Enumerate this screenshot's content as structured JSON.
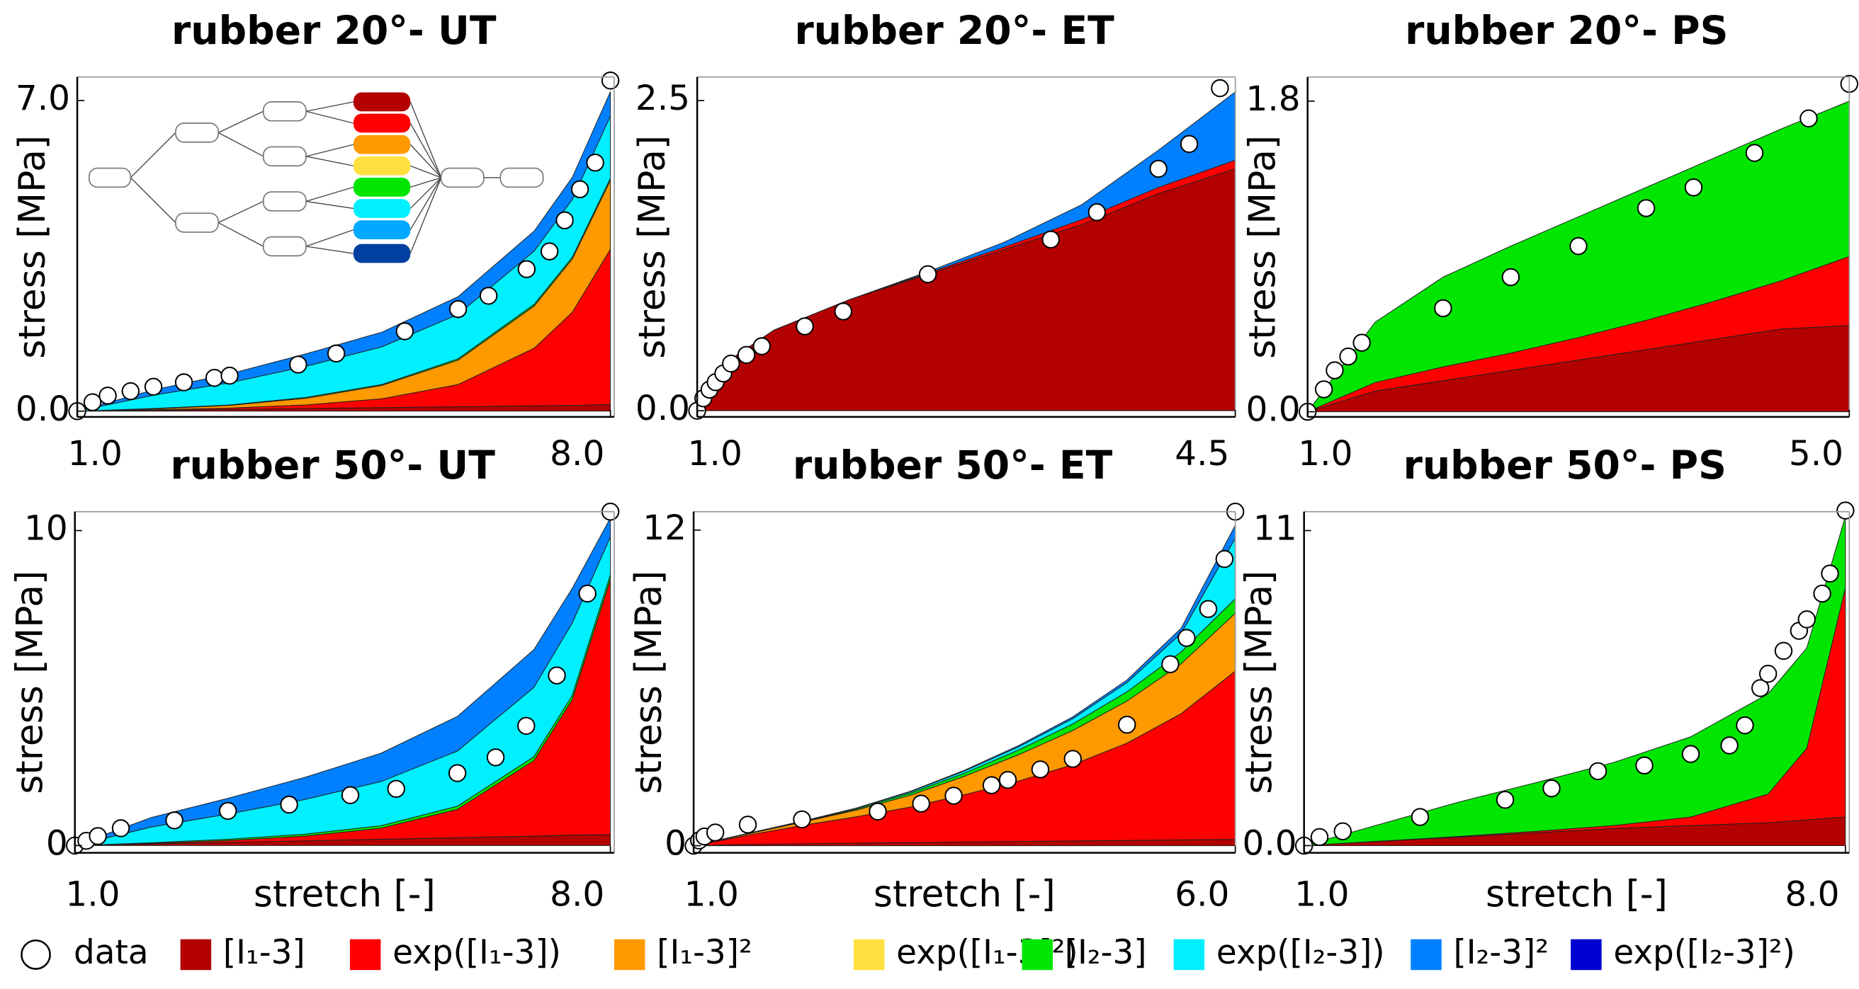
{
  "chart_data": [
    {
      "type": "area",
      "title": "rubber 20°- UT",
      "ylabel": "stress [MPa]",
      "x": [
        1,
        2,
        3,
        4,
        5,
        6,
        7,
        7.5,
        8
      ],
      "series": [
        {
          "color": "#b30000",
          "values": [
            0,
            0.02,
            0.04,
            0.06,
            0.08,
            0.1,
            0.12,
            0.13,
            0.15
          ]
        },
        {
          "color": "#ff0000",
          "values": [
            0,
            0.01,
            0.03,
            0.08,
            0.2,
            0.5,
            1.3,
            2.1,
            3.5
          ]
        },
        {
          "color": "#ff9900",
          "values": [
            0,
            0.02,
            0.06,
            0.15,
            0.3,
            0.55,
            0.95,
            1.2,
            1.55
          ]
        },
        {
          "color": "#00e600",
          "values": [
            0,
            0.01,
            0.01,
            0.02,
            0.02,
            0.03,
            0.04,
            0.04,
            0.05
          ]
        },
        {
          "color": "#00f0ff",
          "values": [
            0,
            0.3,
            0.5,
            0.7,
            0.85,
            1.0,
            1.2,
            1.3,
            1.4
          ]
        },
        {
          "color": "#0080ff",
          "values": [
            0,
            0.12,
            0.2,
            0.28,
            0.33,
            0.4,
            0.45,
            0.5,
            0.55
          ]
        }
      ],
      "points": {
        "x": [
          1,
          1.2,
          1.4,
          1.7,
          2,
          2.4,
          2.8,
          3.0,
          3.9,
          4.4,
          5.3,
          6,
          6.4,
          6.9,
          7.2,
          7.4,
          7.6,
          7.8,
          8
        ],
        "y": [
          0,
          0.2,
          0.35,
          0.45,
          0.55,
          0.65,
          0.75,
          0.8,
          1.05,
          1.3,
          1.8,
          2.3,
          2.6,
          3.2,
          3.6,
          4.3,
          5,
          5.6,
          7.45
        ]
      },
      "xlim": [
        1,
        8.05
      ],
      "ylim": [
        -0.13,
        7.53
      ],
      "xticks": [
        {
          "value": 1,
          "label": "1.0"
        },
        {
          "value": 8,
          "label": "8.0"
        }
      ],
      "yticks": [
        {
          "value": 0,
          "label": "0.0"
        },
        {
          "value": 7,
          "label": "7.0"
        }
      ]
    },
    {
      "type": "area",
      "title": "rubber 20°- ET",
      "ylabel": "stress [MPa]",
      "x": [
        1,
        1.2,
        1.5,
        2,
        2.5,
        3,
        3.5,
        4,
        4.5
      ],
      "series": [
        {
          "color": "#b30000",
          "values": [
            0,
            0.4,
            0.65,
            0.9,
            1.1,
            1.3,
            1.5,
            1.75,
            1.95
          ]
        },
        {
          "color": "#ff0000",
          "values": [
            0,
            0,
            0,
            0,
            0.01,
            0.02,
            0.04,
            0.05,
            0.07
          ]
        },
        {
          "color": "#0080ff",
          "values": [
            0,
            0,
            0,
            0,
            0.01,
            0.04,
            0.12,
            0.3,
            0.55
          ]
        }
      ],
      "points": {
        "x": [
          1,
          1.04,
          1.08,
          1.12,
          1.17,
          1.22,
          1.32,
          1.42,
          1.7,
          1.95,
          2.5,
          3.3,
          3.6,
          4.0,
          4.2,
          4.4
        ],
        "y": [
          0,
          0.1,
          0.17,
          0.23,
          0.3,
          0.38,
          0.45,
          0.52,
          0.68,
          0.8,
          1.1,
          1.38,
          1.6,
          1.95,
          2.15,
          2.6
        ]
      },
      "xlim": [
        1,
        4.5
      ],
      "ylim": [
        -0.05,
        2.69
      ],
      "xticks": [
        {
          "value": 1,
          "label": "1.0"
        },
        4.5
      ],
      "yticks": [
        {
          "value": 0,
          "label": "0.0"
        },
        2.5
      ]
    },
    {
      "type": "area",
      "title": "rubber 20°- PS",
      "ylabel": "stress [MPa]",
      "x": [
        1,
        1.5,
        2,
        2.5,
        3,
        3.5,
        4,
        4.5,
        5
      ],
      "series": [
        {
          "color": "#b30000",
          "values": [
            0,
            0.12,
            0.18,
            0.24,
            0.3,
            0.36,
            0.42,
            0.48,
            0.5
          ]
        },
        {
          "color": "#ff0000",
          "values": [
            0,
            0.05,
            0.08,
            0.1,
            0.13,
            0.17,
            0.22,
            0.28,
            0.4
          ]
        },
        {
          "color": "#00e600",
          "values": [
            0,
            0.35,
            0.52,
            0.62,
            0.7,
            0.77,
            0.83,
            0.88,
            0.9
          ]
        }
      ],
      "points": {
        "x": [
          1,
          1.12,
          1.2,
          1.3,
          1.4,
          2.0,
          2.5,
          3.0,
          3.5,
          3.85,
          4.3,
          4.7,
          5
        ],
        "y": [
          0,
          0.13,
          0.24,
          0.32,
          0.4,
          0.6,
          0.78,
          0.96,
          1.18,
          1.3,
          1.5,
          1.7,
          1.9
        ]
      },
      "xlim": [
        1,
        5
      ],
      "ylim": [
        -0.03,
        1.94
      ],
      "xticks": [
        {
          "value": 1,
          "label": "1.0"
        },
        {
          "value": 5,
          "label": "5.0"
        }
      ],
      "yticks": [
        {
          "value": 0,
          "label": "0.0"
        },
        1.8
      ]
    },
    {
      "type": "area",
      "title": "rubber 50°- UT",
      "ylabel": "stress [MPa]",
      "xlabel": "stretch [-]",
      "x": [
        1,
        2,
        3,
        4,
        5,
        6,
        7,
        7.5,
        8
      ],
      "series": [
        {
          "color": "#b30000",
          "values": [
            0,
            0.05,
            0.1,
            0.15,
            0.2,
            0.25,
            0.3,
            0.33,
            0.35
          ]
        },
        {
          "color": "#ff0000",
          "values": [
            0,
            0.02,
            0.06,
            0.15,
            0.35,
            0.9,
            2.4,
            4.3,
            8.1
          ]
        },
        {
          "color": "#00e600",
          "values": [
            0,
            0.02,
            0.04,
            0.06,
            0.08,
            0.1,
            0.12,
            0.13,
            0.15
          ]
        },
        {
          "color": "#00f0ff",
          "values": [
            0,
            0.5,
            0.8,
            1.1,
            1.4,
            1.75,
            2.2,
            2.3,
            1.2
          ]
        },
        {
          "color": "#0080ff",
          "values": [
            0,
            0.3,
            0.5,
            0.7,
            0.9,
            1.1,
            1.2,
            1.1,
            0.6
          ]
        }
      ],
      "points": {
        "x": [
          1,
          1.15,
          1.3,
          1.6,
          2.3,
          3,
          3.8,
          4.6,
          5.2,
          6,
          6.5,
          6.9,
          7.3,
          7.7,
          8
        ],
        "y": [
          0,
          0.15,
          0.3,
          0.55,
          0.8,
          1.1,
          1.3,
          1.6,
          1.8,
          2.3,
          2.8,
          3.8,
          5.4,
          8,
          10.6
        ]
      },
      "xlim": [
        1,
        8.05
      ],
      "ylim": [
        -0.23,
        10.6
      ],
      "xticks": [
        {
          "value": 1,
          "label": "1.0"
        },
        {
          "value": 8,
          "label": "8.0"
        }
      ],
      "yticks": [
        0,
        10
      ]
    },
    {
      "type": "area",
      "title": "rubber 50°- ET",
      "ylabel": "stress [MPa]",
      "xlabel": "stretch [-]",
      "x": [
        1,
        1.5,
        2,
        2.5,
        3,
        3.5,
        4,
        4.5,
        5,
        5.5,
        6
      ],
      "series": [
        {
          "color": "#b30000",
          "values": [
            0,
            0.05,
            0.07,
            0.1,
            0.12,
            0.14,
            0.16,
            0.18,
            0.2,
            0.22,
            0.24
          ]
        },
        {
          "color": "#ff0000",
          "values": [
            0,
            0.35,
            0.7,
            1.0,
            1.35,
            1.8,
            2.3,
            2.9,
            3.7,
            4.8,
            6.4
          ]
        },
        {
          "color": "#ff9900",
          "values": [
            0,
            0.05,
            0.12,
            0.25,
            0.45,
            0.7,
            1.0,
            1.3,
            1.6,
            1.9,
            2.2
          ]
        },
        {
          "color": "#00e600",
          "values": [
            0,
            0.01,
            0.02,
            0.04,
            0.08,
            0.12,
            0.18,
            0.25,
            0.35,
            0.45,
            0.55
          ]
        },
        {
          "color": "#00f0ff",
          "values": [
            0,
            0.01,
            0.02,
            0.03,
            0.05,
            0.08,
            0.12,
            0.2,
            0.35,
            0.7,
            2.3
          ]
        },
        {
          "color": "#0080ff",
          "values": [
            0,
            0,
            0,
            0.01,
            0.02,
            0.03,
            0.05,
            0.07,
            0.1,
            0.2,
            0.5
          ]
        }
      ],
      "points": {
        "x": [
          1,
          1.05,
          1.1,
          1.2,
          1.5,
          2.0,
          2.7,
          3.1,
          3.4,
          3.75,
          3.9,
          4.2,
          4.5,
          5.0,
          5.4,
          5.55,
          5.75,
          5.9,
          6.0
        ],
        "y": [
          0,
          0.2,
          0.35,
          0.5,
          0.8,
          1.0,
          1.3,
          1.6,
          1.9,
          2.3,
          2.5,
          2.9,
          3.3,
          4.6,
          6.9,
          7.9,
          9.0,
          10.9,
          12.7
        ]
      },
      "xlim": [
        1,
        6
      ],
      "ylim": [
        -0.27,
        12.7
      ],
      "xticks": [
        {
          "value": 1,
          "label": "1.0"
        },
        {
          "value": 6,
          "label": "6.0"
        }
      ],
      "yticks": [
        0,
        12
      ]
    },
    {
      "type": "area",
      "title": "rubber 50°- PS",
      "ylabel": "stress [MPa]",
      "xlabel": "stretch [-]",
      "x": [
        1,
        2,
        3,
        4,
        5,
        6,
        7,
        7.5,
        8
      ],
      "series": [
        {
          "color": "#b30000",
          "values": [
            0,
            0.15,
            0.3,
            0.45,
            0.6,
            0.7,
            0.8,
            0.9,
            1.0
          ]
        },
        {
          "color": "#ff0000",
          "values": [
            0,
            0.01,
            0.02,
            0.05,
            0.1,
            0.3,
            1.0,
            2.5,
            8.0
          ]
        },
        {
          "color": "#00e600",
          "values": [
            0,
            0.6,
            1.2,
            1.7,
            2.2,
            2.8,
            3.5,
            3.5,
            2.5
          ]
        }
      ],
      "points": {
        "x": [
          1,
          1.2,
          1.5,
          2.5,
          3.6,
          4.2,
          4.8,
          5.4,
          6.0,
          6.5,
          6.7,
          6.9,
          7.0,
          7.2,
          7.4,
          7.5,
          7.7,
          7.8,
          8
        ],
        "y": [
          0,
          0.3,
          0.5,
          1.0,
          1.6,
          2.0,
          2.6,
          2.8,
          3.2,
          3.5,
          4.2,
          5.5,
          6.0,
          6.8,
          7.5,
          7.9,
          8.8,
          9.5,
          11.7
        ]
      },
      "xlim": [
        1,
        8.05
      ],
      "ylim": [
        -0.25,
        11.66
      ],
      "xticks": [
        {
          "value": 1,
          "label": "1.0"
        },
        {
          "value": 8,
          "label": "8.0"
        }
      ],
      "yticks": [
        {
          "value": 0,
          "label": "0.0"
        },
        11
      ]
    }
  ],
  "legend": [
    {
      "name": "data",
      "marker": "circle"
    },
    {
      "name": "[I₁-3]",
      "color": "#b30000"
    },
    {
      "name": "exp([I₁-3])",
      "color": "#ff0000"
    },
    {
      "name": "[I₁-3]²",
      "color": "#ff9900"
    },
    {
      "name": "exp([I₁-3]²)",
      "color": "#ffe040"
    },
    {
      "name": "[I₂-3]",
      "color": "#00e600"
    },
    {
      "name": "exp([I₂-3])",
      "color": "#00f0ff"
    },
    {
      "name": "[I₂-3]²",
      "color": "#0080ff"
    },
    {
      "name": "exp([I₂-3]²)",
      "color": "#0000d0"
    }
  ]
}
